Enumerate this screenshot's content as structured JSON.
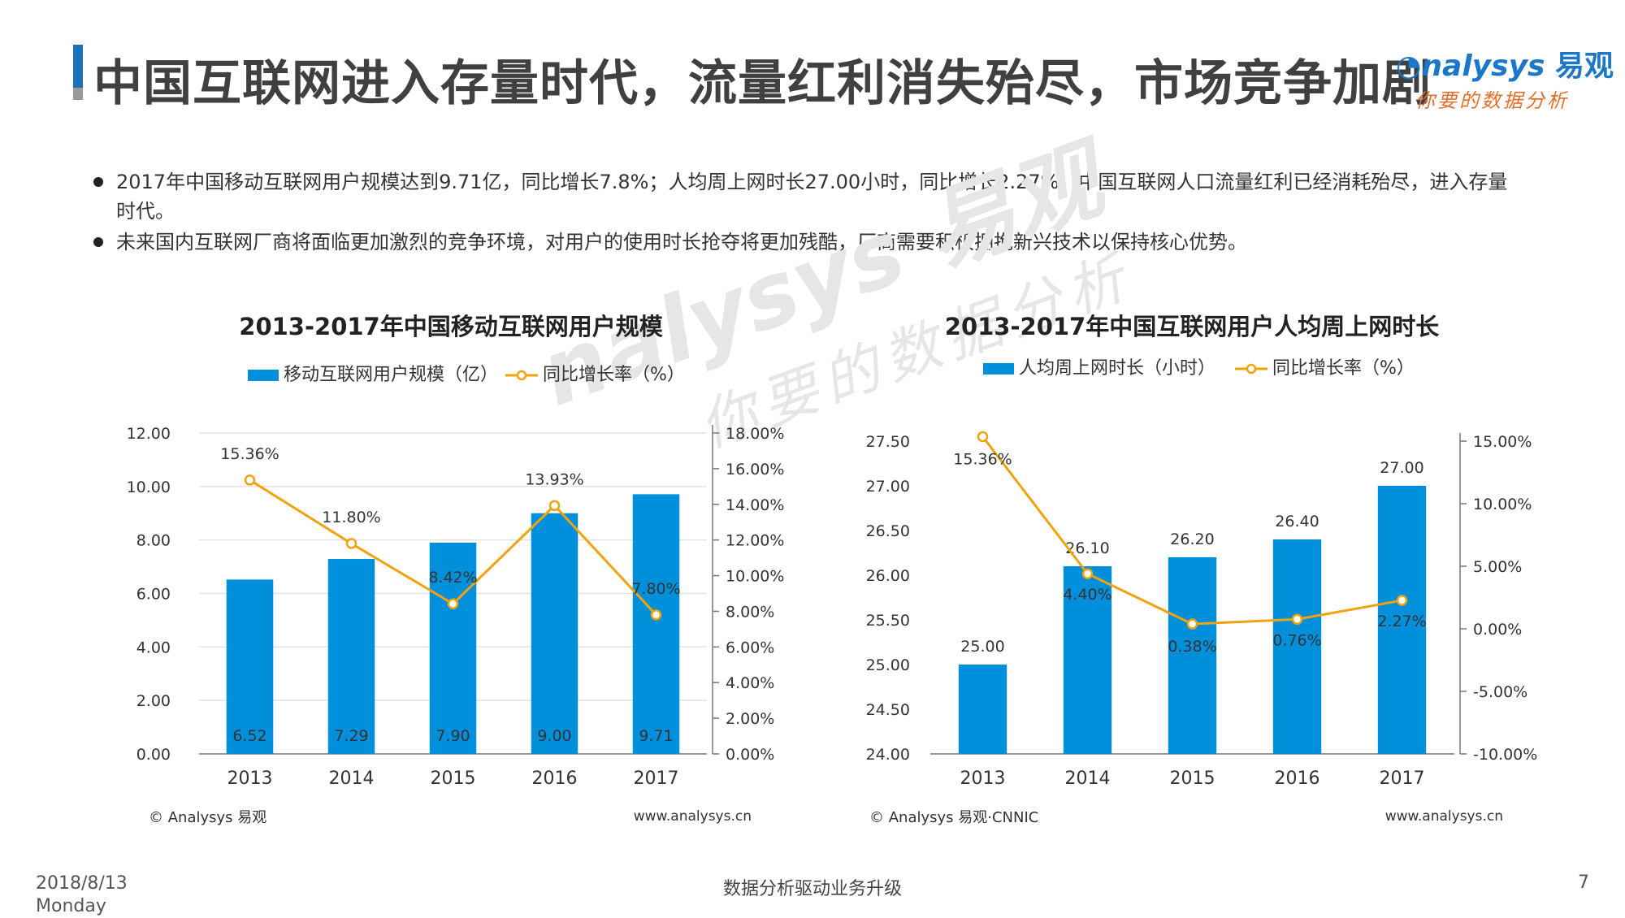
{
  "header": {
    "title": "中国互联网进入存量时代，流量红利消失殆尽，市场竞争加剧",
    "logo_text": "nalysys",
    "logo_cn": "易观",
    "logo_slogan": "你要的数据分析"
  },
  "bullets": [
    "2017年中国移动互联网用户规模达到9.71亿，同比增长7.8%；人均周上网时长27.00小时，同比增长2.27%。中国互联网人口流量红利已经消耗殆尽，进入存量时代。",
    "未来国内互联网厂商将面临更加激烈的竞争环境，对用户的使用时长抢夺将更加残酷，厂商需要积极拥抱新兴技术以保持核心优势。"
  ],
  "watermark": {
    "line1": "nalysys 易观",
    "line2": "你要的数据分析"
  },
  "colors": {
    "bar": "#0090db",
    "line": "#f0a30a",
    "title": "#404040",
    "accent": "#1d6fb8"
  },
  "chart_data": [
    {
      "type": "bar",
      "title": "2013-2017年中国移动互联网用户规模",
      "categories": [
        "2013",
        "2014",
        "2015",
        "2016",
        "2017"
      ],
      "series": [
        {
          "name": "移动互联网用户规模（亿）",
          "type": "bar",
          "axis": "left",
          "values": [
            6.52,
            7.29,
            7.9,
            9.0,
            9.71
          ],
          "labels": [
            "6.52",
            "7.29",
            "7.90",
            "9.00",
            "9.71"
          ]
        },
        {
          "name": "同比增长率（%）",
          "type": "line",
          "axis": "right",
          "values": [
            15.36,
            11.8,
            8.42,
            13.93,
            7.8
          ],
          "labels": [
            "15.36%",
            "11.80%",
            "8.42%",
            "13.93%",
            "7.80%"
          ]
        }
      ],
      "y_left": {
        "min": 0,
        "max": 12,
        "ticks": [
          "0.00",
          "2.00",
          "4.00",
          "6.00",
          "8.00",
          "10.00",
          "12.00"
        ]
      },
      "y_right": {
        "min": 0,
        "max": 18,
        "ticks": [
          "0.00%",
          "2.00%",
          "4.00%",
          "6.00%",
          "8.00%",
          "10.00%",
          "12.00%",
          "14.00%",
          "16.00%",
          "18.00%"
        ]
      },
      "grid": true,
      "legend": "top",
      "source": "© Analysys 易观",
      "website": "www.analysys.cn"
    },
    {
      "type": "bar",
      "title": "2013-2017年中国互联网用户人均周上网时长",
      "categories": [
        "2013",
        "2014",
        "2015",
        "2016",
        "2017"
      ],
      "series": [
        {
          "name": "人均周上网时长（小时）",
          "type": "bar",
          "axis": "left",
          "values": [
            25.0,
            26.1,
            26.2,
            26.4,
            27.0
          ],
          "labels": [
            "25.00",
            "26.10",
            "26.20",
            "26.40",
            "27.00"
          ]
        },
        {
          "name": "同比增长率（%）",
          "type": "line",
          "axis": "right",
          "values": [
            15.36,
            4.4,
            0.38,
            0.76,
            2.27
          ],
          "labels": [
            "15.36%",
            "4.40%",
            "0.38%",
            "0.76%",
            "2.27%"
          ]
        }
      ],
      "y_left": {
        "min": 24,
        "max": 27.5,
        "ticks": [
          "24.00",
          "24.50",
          "25.00",
          "25.50",
          "26.00",
          "26.50",
          "27.00",
          "27.50"
        ]
      },
      "y_right": {
        "min": -10,
        "max": 15,
        "ticks": [
          "-10.00%",
          "-5.00%",
          "0.00%",
          "5.00%",
          "10.00%",
          "15.00%"
        ]
      },
      "grid": false,
      "legend": "top",
      "source": "© Analysys 易观·CNNIC",
      "website": "www.analysys.cn"
    }
  ],
  "footer": {
    "date": "2018/8/13",
    "weekday": "Monday",
    "center": "数据分析驱动业务升级",
    "page": "7"
  }
}
